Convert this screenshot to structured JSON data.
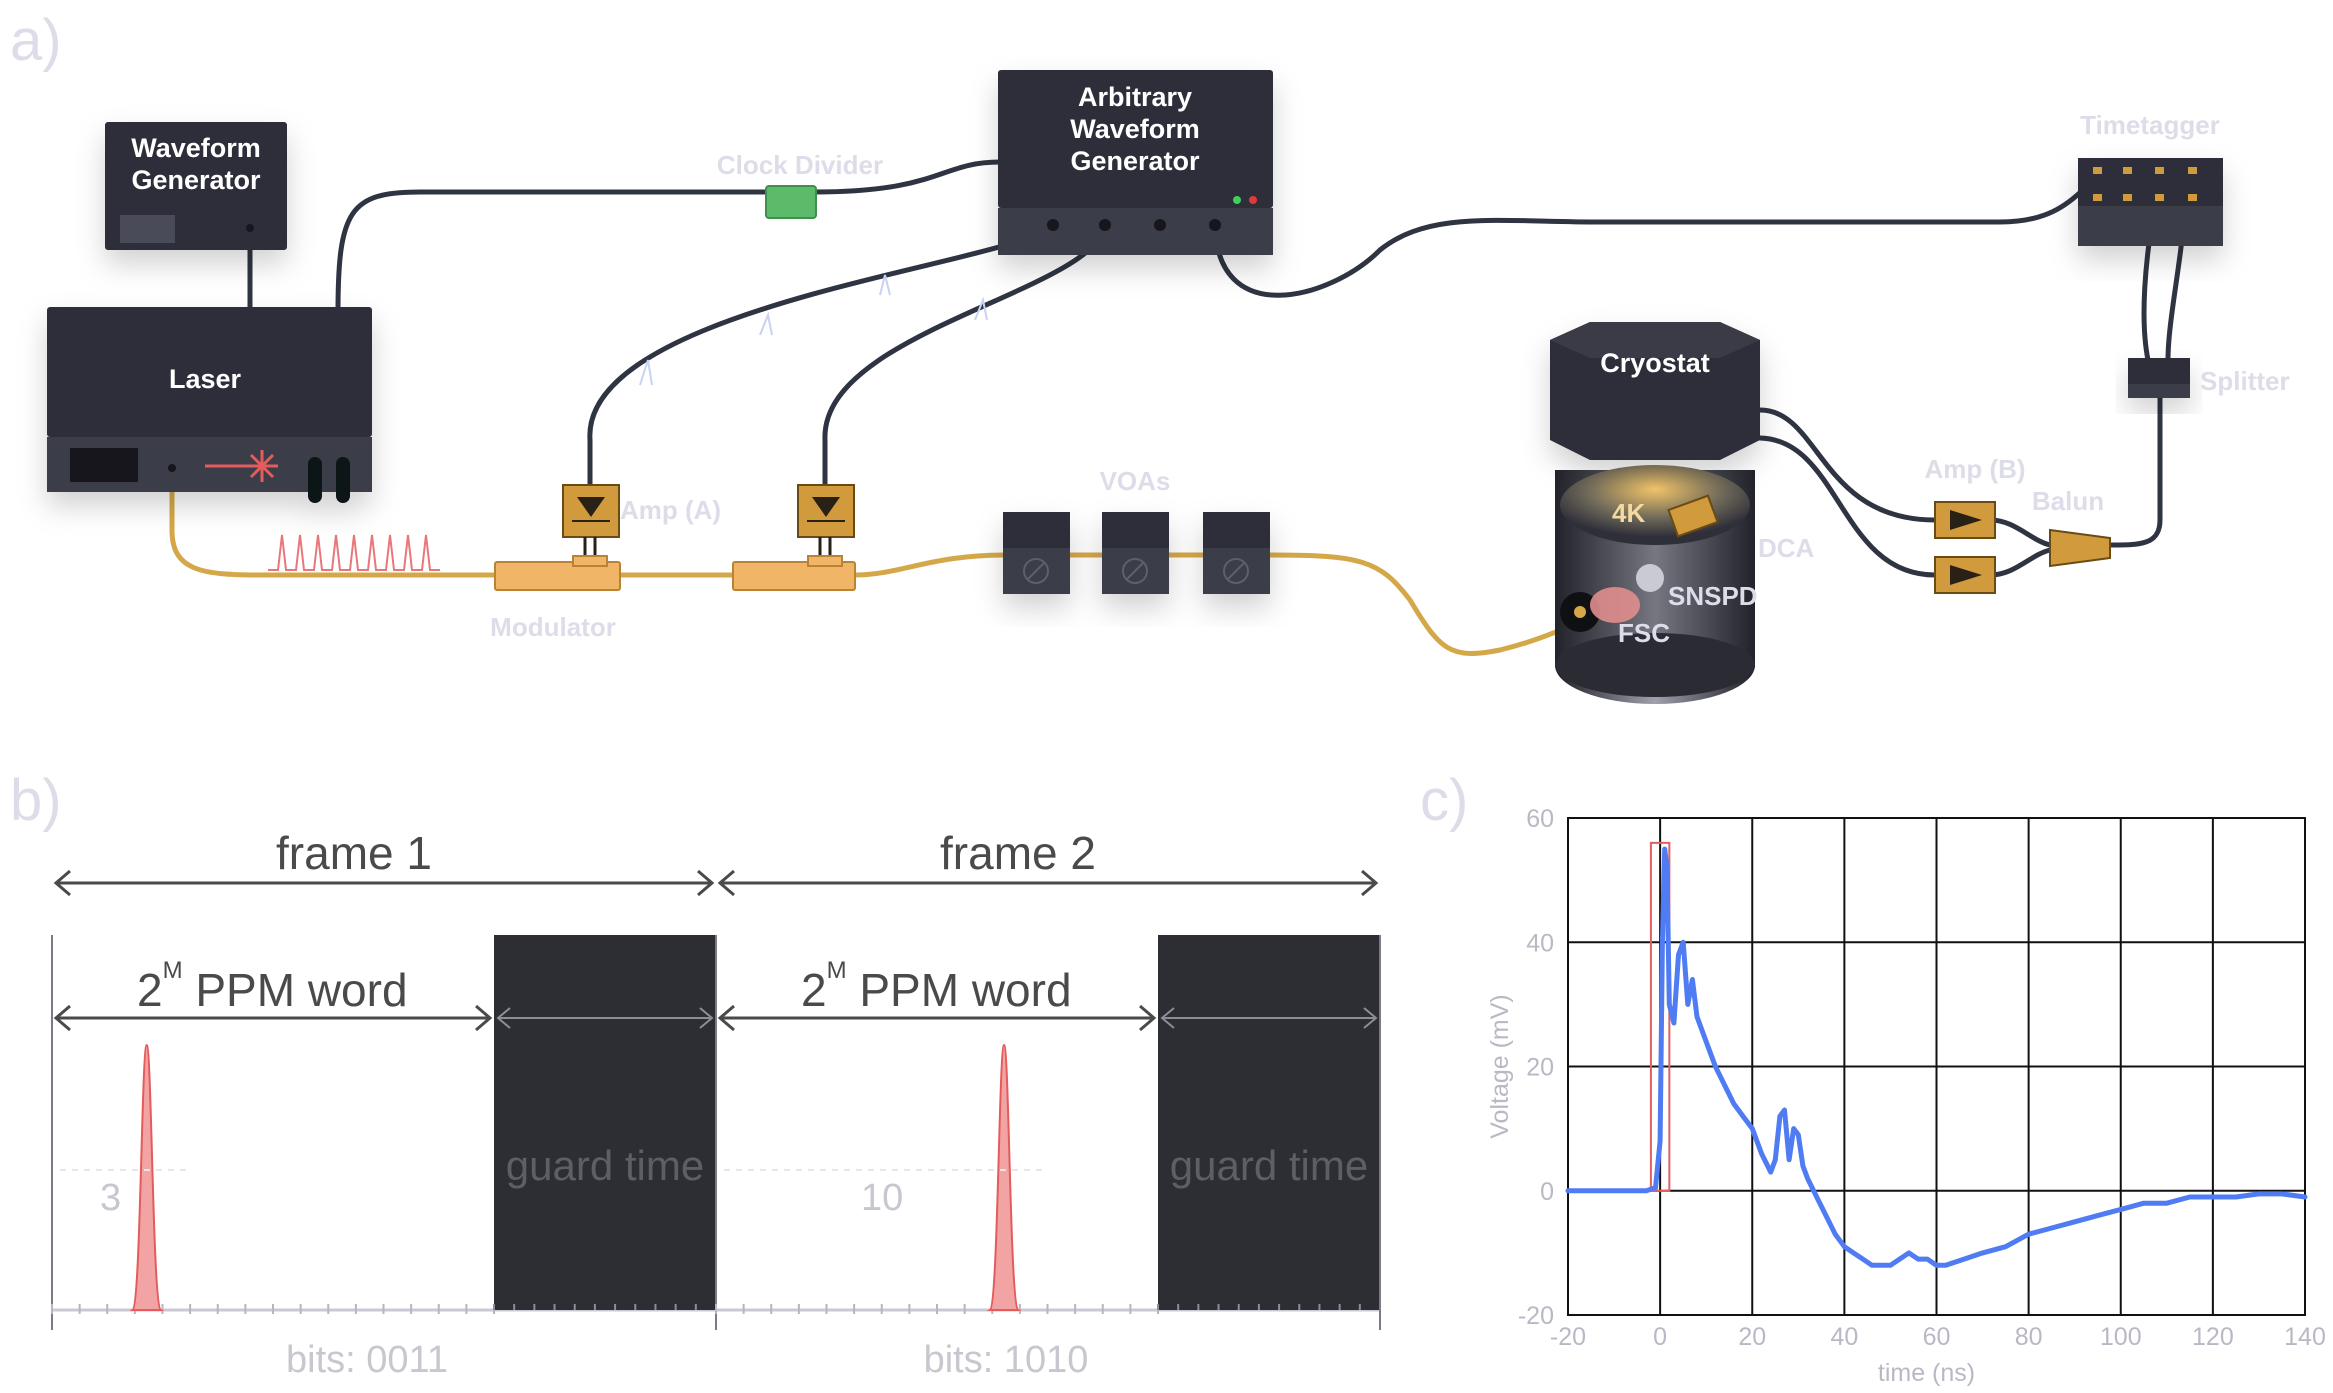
{
  "panels": {
    "a": "a)",
    "b": "b)",
    "c": "c)"
  },
  "setup": {
    "waveform_generator": "Waveform\nGenerator",
    "laser": "Laser",
    "awg": "Arbitrary\nWaveform\nGenerator",
    "clock_divider": "Clock Divider",
    "timetagger": "Timetagger",
    "splitter": "Splitter",
    "cryostat": "Cryostat",
    "amp_a": "Amp (A)",
    "amp_b": "Amp (B)",
    "balun": "Balun",
    "modulator": "Modulator",
    "voas": "VOAs",
    "stage": "4K",
    "dca": "DCA",
    "snspd": "SNSPD",
    "fsc": "FSC"
  },
  "ppm": {
    "frames": [
      {
        "label": "frame 1",
        "word_base": "2",
        "word_exp": "M",
        "word_rest": "PPM word",
        "guard": "guard time",
        "value": "3",
        "bits": "bits: 0011"
      },
      {
        "label": "frame 2",
        "word_base": "2",
        "word_exp": "M",
        "word_rest": "PPM word",
        "guard": "guard time",
        "value": "10",
        "bits": "bits: 1010"
      }
    ]
  },
  "chart_data": {
    "type": "line",
    "title": "",
    "xlabel": "time (ns)",
    "ylabel": "Voltage (mV)",
    "xlim": [
      -20,
      140
    ],
    "ylim": [
      -20,
      60
    ],
    "xticks": [
      -20,
      0,
      20,
      40,
      60,
      80,
      100,
      120,
      140
    ],
    "yticks": [
      -20,
      0,
      20,
      40,
      60
    ],
    "grid": true,
    "highlight_box": {
      "x": [
        -2,
        2
      ],
      "y": [
        0,
        56
      ]
    },
    "series": [
      {
        "color": "#4f7cf3",
        "x": [
          -20,
          -10,
          -3,
          -1,
          0,
          0.5,
          1,
          1.5,
          2,
          3,
          4,
          5,
          6,
          7,
          8,
          9,
          10,
          12,
          14,
          16,
          18,
          20,
          22,
          24,
          25,
          26,
          27,
          28,
          29,
          30,
          31,
          32,
          34,
          36,
          38,
          40,
          42,
          44,
          46,
          48,
          50,
          52,
          54,
          56,
          58,
          60,
          62,
          66,
          70,
          75,
          80,
          85,
          90,
          95,
          100,
          105,
          110,
          115,
          120,
          125,
          130,
          135,
          140
        ],
        "values": [
          0,
          0,
          0,
          0.5,
          8,
          40,
          55,
          52,
          30,
          27,
          38,
          40,
          30,
          34,
          28,
          26,
          24,
          20,
          17,
          14,
          12,
          10,
          6,
          3,
          5,
          12,
          13,
          5,
          10,
          9,
          4,
          2,
          -1,
          -4,
          -7,
          -9,
          -10,
          -11,
          -12,
          -12,
          -12,
          -11,
          -10,
          -11,
          -11,
          -12,
          -12,
          -11,
          -10,
          -9,
          -7,
          -6,
          -5,
          -4,
          -3,
          -2,
          -2,
          -1,
          -1,
          -1,
          -0.5,
          -0.5,
          -1
        ]
      }
    ]
  }
}
